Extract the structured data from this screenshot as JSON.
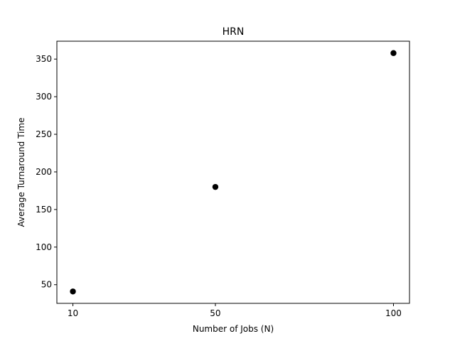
{
  "chart_data": {
    "type": "scatter",
    "title": "HRN",
    "xlabel": "Number of Jobs (N)",
    "ylabel": "Average Turnaround Time",
    "x": [
      10,
      50,
      100
    ],
    "y": [
      41,
      180,
      358
    ],
    "xticks": [
      10,
      50,
      100
    ],
    "yticks": [
      50,
      100,
      150,
      200,
      250,
      300,
      350
    ],
    "xlim": [
      5.5,
      104.5
    ],
    "ylim": [
      25.2,
      373.8
    ],
    "grid": false,
    "marker_color": "#000000"
  }
}
